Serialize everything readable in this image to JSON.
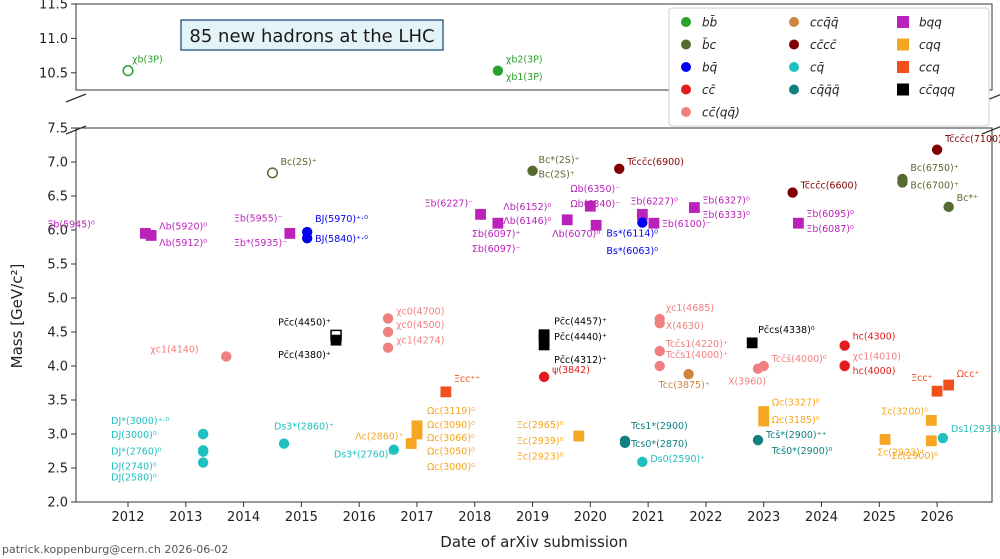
{
  "chart_data": {
    "type": "scatter",
    "title": "85 new hadrons at the LHC",
    "xlabel": "Date of arXiv submission",
    "ylabel": "Mass [GeV/c²]",
    "footer": "patrick.koppenburg@cern.ch 2026-06-02",
    "xlim": [
      2011.1,
      2026.95
    ],
    "ylim_lower": [
      2.0,
      7.5
    ],
    "ylim_upper": [
      10.25,
      11.5
    ],
    "x_ticks": [
      2012,
      2013,
      2014,
      2015,
      2016,
      2017,
      2018,
      2019,
      2020,
      2021,
      2022,
      2023,
      2024,
      2025,
      2026
    ],
    "x_tick_labels": [
      "2012",
      "2013",
      "2014",
      "2015",
      "2016",
      "2017",
      "2018",
      "2019",
      "2020",
      "2021",
      "2022",
      "2023",
      "2024",
      "2025",
      "2026"
    ],
    "y_ticks_lower": [
      "2.0",
      "2.5",
      "3.0",
      "3.5",
      "4.0",
      "4.5",
      "5.0",
      "5.5",
      "6.0",
      "6.5",
      "7.0",
      "7.5"
    ],
    "y_ticks_upper": [
      "10.5",
      "11.0",
      "11.5"
    ],
    "grid": false,
    "legend": {
      "placement": "top-right",
      "entries": [
        {
          "label": "bb̄",
          "marker": "circle",
          "color": "#2ca02c"
        },
        {
          "label": "b̄c",
          "marker": "circle",
          "color": "#556b2f"
        },
        {
          "label": "bq̄",
          "marker": "circle",
          "color": "#0000ee"
        },
        {
          "label": "cc̄",
          "marker": "circle",
          "color": "#e41a1c"
        },
        {
          "label": "cc̄(qq̄)",
          "marker": "circle",
          "color": "#f08080"
        },
        {
          "label": "ccq̄q̄",
          "marker": "circle",
          "color": "#cd853f"
        },
        {
          "label": "cc̄cc̄",
          "marker": "circle",
          "color": "#800000"
        },
        {
          "label": "cq̄",
          "marker": "circle",
          "color": "#20c0c0"
        },
        {
          "label": "cq̄q̄q̄",
          "marker": "circle",
          "color": "#0f8080"
        },
        {
          "label": "bqq",
          "marker": "square",
          "color": "#bb22bb"
        },
        {
          "label": "cqq",
          "marker": "square",
          "color": "#f5a623"
        },
        {
          "label": "ccq",
          "marker": "square",
          "color": "#f0501e"
        },
        {
          "label": "cc̄qqq",
          "marker": "square",
          "color": "#000000"
        }
      ]
    },
    "points": [
      {
        "x": 2012.0,
        "y": 10.53,
        "marker": "circle",
        "open": true,
        "color": "#2ca02c",
        "label": "χb(3P)",
        "dx": 4,
        "dy": -8
      },
      {
        "x": 2018.4,
        "y": 10.53,
        "marker": "circle",
        "color": "#2ca02c",
        "label": "χb2(3P)",
        "dx": 8,
        "dy": -8
      },
      {
        "x": 2018.4,
        "y": 10.51,
        "marker": "none",
        "color": "#2ca02c",
        "label": "χb1(3P)",
        "dx": 8,
        "dy": 8
      },
      {
        "x": 2012.3,
        "y": 5.95,
        "marker": "square",
        "color": "#bb22bb",
        "label": "Ξb(5945)⁰",
        "dx": -98,
        "dy": -6
      },
      {
        "x": 2012.4,
        "y": 5.92,
        "marker": "square",
        "color": "#bb22bb",
        "label": "Λb(5920)⁰",
        "dx": 8,
        "dy": -6
      },
      {
        "x": 2012.4,
        "y": 5.91,
        "marker": "none",
        "color": "#bb22bb",
        "label": "Λb(5912)⁰",
        "dx": 8,
        "dy": 10
      },
      {
        "x": 2013.3,
        "y": 3.0,
        "marker": "circle",
        "color": "#20c0c0",
        "label": "DJ*(3000)⁺·⁰",
        "dx": -92,
        "dy": -10
      },
      {
        "x": 2013.3,
        "y": 3.0,
        "marker": "circle",
        "color": "#20c0c0",
        "label": "DJ(3000)⁰",
        "dx": -92,
        "dy": 4
      },
      {
        "x": 2013.3,
        "y": 2.76,
        "marker": "circle",
        "color": "#20c0c0",
        "label": "DJ*(2760)⁰",
        "dx": -92,
        "dy": 4
      },
      {
        "x": 2013.3,
        "y": 2.74,
        "marker": "circle",
        "color": "#20c0c0",
        "label": "DJ(2740)⁰",
        "dx": -92,
        "dy": 18
      },
      {
        "x": 2013.3,
        "y": 2.58,
        "marker": "circle",
        "color": "#20c0c0",
        "label": "DJ(2580)⁰",
        "dx": -92,
        "dy": 18
      },
      {
        "x": 2013.7,
        "y": 4.14,
        "marker": "circle",
        "color": "#f08080",
        "label": "χc1(4140)",
        "dx": -76,
        "dy": -4
      },
      {
        "x": 2014.5,
        "y": 6.84,
        "marker": "circle",
        "open": true,
        "color": "#556b2f",
        "label": "Bc(2S)⁺",
        "dx": 8,
        "dy": -8
      },
      {
        "x": 2014.7,
        "y": 2.86,
        "marker": "circle",
        "color": "#20c0c0",
        "label": "Ds3*(2860)⁺",
        "dx": -10,
        "dy": -14
      },
      {
        "x": 2014.8,
        "y": 5.95,
        "marker": "square",
        "color": "#bb22bb",
        "label": "Ξb(5955)⁻",
        "dx": -56,
        "dy": -12
      },
      {
        "x": 2014.8,
        "y": 5.94,
        "marker": "none",
        "color": "#bb22bb",
        "label": "Ξb*(5935)⁻",
        "dx": -56,
        "dy": 12
      },
      {
        "x": 2015.1,
        "y": 5.97,
        "marker": "circle",
        "color": "#0000ee",
        "label": "BJ(5970)⁺·⁰",
        "dx": 8,
        "dy": -10
      },
      {
        "x": 2015.1,
        "y": 5.88,
        "marker": "circle",
        "color": "#0000ee",
        "label": "BJ(5840)⁺·⁰",
        "dx": 8,
        "dy": 4
      },
      {
        "x": 2015.6,
        "y": 4.45,
        "marker": "square",
        "open": true,
        "color": "#000000",
        "label": "Pc̄c(4450)⁺",
        "dx": -58,
        "dy": -10
      },
      {
        "x": 2015.6,
        "y": 4.38,
        "marker": "square",
        "color": "#000000",
        "label": "Pc̄c(4380)⁺",
        "dx": -58,
        "dy": 18
      },
      {
        "x": 2016.5,
        "y": 4.7,
        "marker": "circle",
        "color": "#f08080",
        "label": "χc0(4700)",
        "dx": 8,
        "dy": -4
      },
      {
        "x": 2016.5,
        "y": 4.5,
        "marker": "circle",
        "color": "#f08080",
        "label": "χc0(4500)",
        "dx": 8,
        "dy": -4
      },
      {
        "x": 2016.5,
        "y": 4.27,
        "marker": "circle",
        "color": "#f08080",
        "label": "χc1(4274)",
        "dx": 8,
        "dy": -4
      },
      {
        "x": 2016.6,
        "y": 2.77,
        "marker": "circle",
        "color": "#20c0c0",
        "label": "Ds3*(2760)⁰",
        "dx": -60,
        "dy": 8
      },
      {
        "x": 2016.9,
        "y": 2.86,
        "marker": "square",
        "color": "#f5a623",
        "label": "Λc(2860)⁺",
        "dx": -56,
        "dy": -4
      },
      {
        "x": 2017.0,
        "y": 3.12,
        "marker": "square",
        "color": "#f5a623",
        "label": "Ωc(3119)⁰",
        "dx": 10,
        "dy": -12
      },
      {
        "x": 2017.0,
        "y": 3.09,
        "marker": "square",
        "color": "#f5a623",
        "label": "Ωc(3090)⁰",
        "dx": 10,
        "dy": 0
      },
      {
        "x": 2017.0,
        "y": 3.07,
        "marker": "square",
        "color": "#f5a623",
        "label": "Ωc(3066)⁰",
        "dx": 10,
        "dy": 12
      },
      {
        "x": 2017.0,
        "y": 3.05,
        "marker": "square",
        "color": "#f5a623",
        "label": "Ωc(3050)⁰",
        "dx": 10,
        "dy": 24
      },
      {
        "x": 2017.0,
        "y": 3.0,
        "marker": "square",
        "color": "#f5a623",
        "label": "Ωc(3000)⁰",
        "dx": 10,
        "dy": 36
      },
      {
        "x": 2017.5,
        "y": 3.62,
        "marker": "square",
        "color": "#f0501e",
        "label": "Ξcc⁺⁺",
        "dx": 8,
        "dy": -10
      },
      {
        "x": 2018.1,
        "y": 6.23,
        "marker": "square",
        "color": "#bb22bb",
        "label": "Ξb(6227)⁻",
        "dx": -56,
        "dy": -8
      },
      {
        "x": 2018.4,
        "y": 6.1,
        "marker": "square",
        "color": "#bb22bb",
        "label": "Σb(6097)⁺",
        "dx": -26,
        "dy": 14
      },
      {
        "x": 2018.4,
        "y": 6.09,
        "marker": "none",
        "color": "#bb22bb",
        "label": "Σb(6097)⁻",
        "dx": -26,
        "dy": 28
      },
      {
        "x": 2019.0,
        "y": 6.87,
        "marker": "circle",
        "color": "#556b2f",
        "label": "Bc*(2S)⁺",
        "dx": 6,
        "dy": -8
      },
      {
        "x": 2019.0,
        "y": 6.86,
        "marker": "none",
        "color": "#556b2f",
        "label": "Bc(2S)⁺",
        "dx": 6,
        "dy": 6
      },
      {
        "x": 2019.2,
        "y": 4.46,
        "marker": "square",
        "color": "#000000",
        "label": "Pc̄c(4457)⁺",
        "dx": 10,
        "dy": -10
      },
      {
        "x": 2019.2,
        "y": 4.44,
        "marker": "square",
        "color": "#000000",
        "label": "Pc̄c(4440)⁺",
        "dx": 10,
        "dy": 4
      },
      {
        "x": 2019.2,
        "y": 4.31,
        "marker": "square",
        "color": "#000000",
        "label": "Pc̄c(4312)⁺",
        "dx": 10,
        "dy": 18
      },
      {
        "x": 2019.2,
        "y": 3.84,
        "marker": "circle",
        "color": "#e41a1c",
        "label": "ψ(3842)",
        "dx": 8,
        "dy": -4
      },
      {
        "x": 2019.6,
        "y": 6.15,
        "marker": "square",
        "color": "#bb22bb",
        "label": "Λb(6152)⁰",
        "dx": -64,
        "dy": -10
      },
      {
        "x": 2019.6,
        "y": 6.15,
        "marker": "none",
        "color": "#bb22bb",
        "label": "Λb(6146)⁰",
        "dx": -64,
        "dy": 4
      },
      {
        "x": 2019.8,
        "y": 2.97,
        "marker": "square",
        "color": "#f5a623",
        "label": "Ξc(2965)⁰",
        "dx": -62,
        "dy": -8
      },
      {
        "x": 2019.8,
        "y": 2.94,
        "marker": "none",
        "color": "#f5a623",
        "label": "Ξc(2939)⁰",
        "dx": -62,
        "dy": 6
      },
      {
        "x": 2019.8,
        "y": 2.92,
        "marker": "none",
        "color": "#f5a623",
        "label": "Ξc(2923)⁰",
        "dx": -62,
        "dy": 20
      },
      {
        "x": 2020.0,
        "y": 6.35,
        "marker": "square",
        "color": "#bb22bb",
        "label": "Ωb(6350)⁻",
        "dx": -20,
        "dy": -14
      },
      {
        "x": 2020.0,
        "y": 6.34,
        "marker": "none",
        "color": "#bb22bb",
        "label": "Ωb(6340)⁻",
        "dx": -20,
        "dy": 0
      },
      {
        "x": 2020.1,
        "y": 6.07,
        "marker": "square",
        "color": "#bb22bb",
        "label": "Λb(6070)⁰",
        "dx": -44,
        "dy": 12
      },
      {
        "x": 2020.5,
        "y": 6.9,
        "marker": "circle",
        "color": "#800000",
        "label": "Tc̄cc̄c(6900)",
        "dx": 8,
        "dy": -4
      },
      {
        "x": 2020.6,
        "y": 2.9,
        "marker": "circle",
        "color": "#0f8080",
        "label": "Tcs1*(2900)",
        "dx": 6,
        "dy": -12
      },
      {
        "x": 2020.6,
        "y": 2.87,
        "marker": "circle",
        "color": "#0f8080",
        "label": "Tcs0*(2870)",
        "dx": 6,
        "dy": 4
      },
      {
        "x": 2020.9,
        "y": 6.23,
        "marker": "square",
        "color": "#bb22bb",
        "label": "Ξb(6227)⁰",
        "dx": -12,
        "dy": -10
      },
      {
        "x": 2020.9,
        "y": 6.11,
        "marker": "circle",
        "color": "#0000ee",
        "label": "Bs*(6114)⁰",
        "dx": -36,
        "dy": 14
      },
      {
        "x": 2020.9,
        "y": 6.06,
        "marker": "none",
        "color": "#0000ee",
        "label": "Bs*(6063)⁰",
        "dx": -36,
        "dy": 28
      },
      {
        "x": 2020.9,
        "y": 2.59,
        "marker": "circle",
        "color": "#20c0c0",
        "label": "Ds0(2590)⁺",
        "dx": 8,
        "dy": 0
      },
      {
        "x": 2021.1,
        "y": 6.1,
        "marker": "square",
        "color": "#bb22bb",
        "label": "Ξb(6100)⁻",
        "dx": 8,
        "dy": 4
      },
      {
        "x": 2021.2,
        "y": 4.69,
        "marker": "circle",
        "color": "#f08080",
        "label": "χc1(4685)",
        "dx": 6,
        "dy": -8
      },
      {
        "x": 2021.2,
        "y": 4.63,
        "marker": "circle",
        "color": "#f08080",
        "label": "X(4630)",
        "dx": 6,
        "dy": 6
      },
      {
        "x": 2021.2,
        "y": 4.22,
        "marker": "circle",
        "color": "#f08080",
        "label": "Tcc̄s1(4220)⁺",
        "dx": 6,
        "dy": -4
      },
      {
        "x": 2021.2,
        "y": 4.0,
        "marker": "circle",
        "color": "#f08080",
        "label": "Tcc̄s1(4000)⁺",
        "dx": 6,
        "dy": -8
      },
      {
        "x": 2021.7,
        "y": 3.88,
        "marker": "circle",
        "color": "#cd853f",
        "label": "Tcc(3875)⁺",
        "dx": -30,
        "dy": 14
      },
      {
        "x": 2021.8,
        "y": 6.33,
        "marker": "square",
        "color": "#bb22bb",
        "label": "Ξb(6327)⁰",
        "dx": 8,
        "dy": -4
      },
      {
        "x": 2021.8,
        "y": 6.32,
        "marker": "none",
        "color": "#bb22bb",
        "label": "Ξb(6333)⁰",
        "dx": 8,
        "dy": 10
      },
      {
        "x": 2022.8,
        "y": 4.34,
        "marker": "square",
        "color": "#000000",
        "label": "Pc̄cs(4338)⁰",
        "dx": 6,
        "dy": -10
      },
      {
        "x": 2022.9,
        "y": 3.96,
        "marker": "circle",
        "color": "#f08080",
        "label": "X(3960)",
        "dx": -30,
        "dy": 16
      },
      {
        "x": 2023.0,
        "y": 4.0,
        "marker": "circle",
        "color": "#f08080",
        "label": "Tcc̄s̄(4000)⁰",
        "dx": 8,
        "dy": -4
      },
      {
        "x": 2023.0,
        "y": 3.33,
        "marker": "square",
        "color": "#f5a623",
        "label": "Ωc(3327)⁰",
        "dx": 8,
        "dy": -6
      },
      {
        "x": 2023.0,
        "y": 3.19,
        "marker": "square",
        "color": "#f5a623",
        "label": "Ωc(3185)⁰",
        "dx": 8,
        "dy": 2
      },
      {
        "x": 2022.9,
        "y": 2.91,
        "marker": "circle",
        "color": "#0f8080",
        "label": "Tcs̄*(2900)⁺⁺",
        "dx": 8,
        "dy": -2
      },
      {
        "x": 2023.0,
        "y": 2.91,
        "marker": "none",
        "color": "#0f8080",
        "label": "Tcs̄0*(2900)⁰",
        "dx": 8,
        "dy": 14
      },
      {
        "x": 2023.5,
        "y": 6.55,
        "marker": "circle",
        "color": "#800000",
        "label": "Tc̄cc̄c(6600)",
        "dx": 8,
        "dy": -4
      },
      {
        "x": 2023.6,
        "y": 6.1,
        "marker": "square",
        "color": "#bb22bb",
        "label": "Ξb(6095)⁰",
        "dx": 8,
        "dy": -6
      },
      {
        "x": 2023.6,
        "y": 6.09,
        "marker": "none",
        "color": "#bb22bb",
        "label": "Ξb(6087)⁰",
        "dx": 8,
        "dy": 8
      },
      {
        "x": 2024.4,
        "y": 4.3,
        "marker": "circle",
        "color": "#e41a1c",
        "label": "hc(4300)",
        "dx": 8,
        "dy": -6
      },
      {
        "x": 2024.4,
        "y": 4.01,
        "marker": "circle",
        "color": "#f08080",
        "label": "χc1(4010)",
        "dx": 8,
        "dy": -6
      },
      {
        "x": 2024.4,
        "y": 4.0,
        "marker": "circle",
        "color": "#e41a1c",
        "label": "hc(4000)",
        "dx": 8,
        "dy": 8
      },
      {
        "x": 2025.1,
        "y": 2.92,
        "marker": "square",
        "color": "#f5a623",
        "label": "Σc(2923)⁺",
        "dx": -8,
        "dy": 16
      },
      {
        "x": 2025.4,
        "y": 6.75,
        "marker": "circle",
        "color": "#556b2f",
        "label": "Bc(6750)⁺",
        "dx": 8,
        "dy": -8
      },
      {
        "x": 2025.4,
        "y": 6.7,
        "marker": "circle",
        "color": "#556b2f",
        "label": "Bc(6700)⁺",
        "dx": 8,
        "dy": 6
      },
      {
        "x": 2025.9,
        "y": 3.2,
        "marker": "square",
        "color": "#f5a623",
        "label": "Σc(3200)⁰",
        "dx": -50,
        "dy": -6
      },
      {
        "x": 2025.9,
        "y": 2.9,
        "marker": "square",
        "color": "#f5a623",
        "label": "Σc(2900)⁰",
        "dx": -40,
        "dy": 18
      },
      {
        "x": 2026.0,
        "y": 7.18,
        "marker": "circle",
        "color": "#800000",
        "label": "Tc̄cc̄c(7100)",
        "dx": 8,
        "dy": -8
      },
      {
        "x": 2026.0,
        "y": 3.63,
        "marker": "square",
        "color": "#f0501e",
        "label": "Ξcc⁺",
        "dx": -26,
        "dy": -10
      },
      {
        "x": 2026.2,
        "y": 3.72,
        "marker": "square",
        "color": "#f0501e",
        "label": "Ωcc⁺",
        "dx": 8,
        "dy": -8
      },
      {
        "x": 2026.1,
        "y": 2.94,
        "marker": "circle",
        "color": "#20c0c0",
        "label": "Ds1(2933)⁺",
        "dx": 8,
        "dy": -6
      },
      {
        "x": 2026.2,
        "y": 6.34,
        "marker": "circle",
        "color": "#556b2f",
        "label": "Bc*⁺",
        "dx": 8,
        "dy": -6
      }
    ]
  }
}
